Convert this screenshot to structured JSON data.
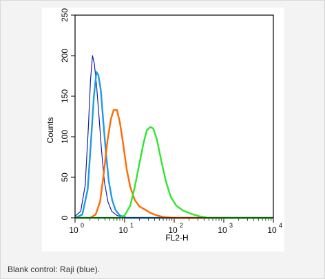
{
  "caption": "Blank control: Raji (blue).",
  "chart_data": {
    "type": "line",
    "title": "",
    "xlabel": "FL2-H",
    "ylabel": "Counts",
    "x_scale": "log",
    "xlim": [
      1,
      10000
    ],
    "ylim": [
      0,
      250
    ],
    "x_ticks": [
      {
        "base": "10",
        "exp": "0"
      },
      {
        "base": "10",
        "exp": "1"
      },
      {
        "base": "10",
        "exp": "2"
      },
      {
        "base": "10",
        "exp": "3"
      },
      {
        "base": "10",
        "exp": "4"
      }
    ],
    "y_ticks": [
      "0",
      "50",
      "100",
      "150",
      "200",
      "250"
    ],
    "grid": false,
    "series": [
      {
        "color": "#1a1aa6",
        "points": [
          [
            1.0,
            2
          ],
          [
            1.3,
            8
          ],
          [
            1.6,
            40
          ],
          [
            1.85,
            110
          ],
          [
            2.05,
            170
          ],
          [
            2.25,
            200
          ],
          [
            2.45,
            190
          ],
          [
            2.7,
            165
          ],
          [
            3.0,
            130
          ],
          [
            3.4,
            85
          ],
          [
            3.9,
            45
          ],
          [
            4.6,
            20
          ],
          [
            5.5,
            8
          ],
          [
            7.0,
            3
          ],
          [
            10.0,
            0
          ],
          [
            100.0,
            0
          ],
          [
            10000.0,
            0
          ]
        ]
      },
      {
        "color": "#1e9be6",
        "points": [
          [
            1.0,
            0
          ],
          [
            1.4,
            4
          ],
          [
            1.8,
            35
          ],
          [
            2.1,
            95
          ],
          [
            2.4,
            150
          ],
          [
            2.7,
            180
          ],
          [
            2.95,
            176
          ],
          [
            3.3,
            158
          ],
          [
            3.7,
            120
          ],
          [
            4.2,
            80
          ],
          [
            4.8,
            45
          ],
          [
            5.6,
            22
          ],
          [
            6.5,
            10
          ],
          [
            8.0,
            3
          ],
          [
            11.0,
            0
          ],
          [
            100.0,
            0
          ],
          [
            10000.0,
            0
          ]
        ]
      },
      {
        "color": "#ff6a00",
        "points": [
          [
            1.0,
            0
          ],
          [
            2.0,
            0
          ],
          [
            2.6,
            4
          ],
          [
            3.2,
            20
          ],
          [
            3.8,
            55
          ],
          [
            4.5,
            95
          ],
          [
            5.3,
            122
          ],
          [
            6.0,
            133
          ],
          [
            7.0,
            133
          ],
          [
            8.0,
            118
          ],
          [
            9.3,
            92
          ],
          [
            11.0,
            60
          ],
          [
            13.0,
            38
          ],
          [
            16.0,
            22
          ],
          [
            20.0,
            14
          ],
          [
            26.0,
            10
          ],
          [
            33.0,
            6
          ],
          [
            45.0,
            3
          ],
          [
            60.0,
            1
          ],
          [
            100.0,
            0
          ],
          [
            10000.0,
            0
          ]
        ]
      },
      {
        "color": "#2ee62e",
        "points": [
          [
            1.0,
            0
          ],
          [
            8.0,
            0
          ],
          [
            10.0,
            3
          ],
          [
            13.0,
            15
          ],
          [
            16.0,
            38
          ],
          [
            20.0,
            68
          ],
          [
            24.0,
            92
          ],
          [
            28.0,
            108
          ],
          [
            33.0,
            112
          ],
          [
            38.0,
            110
          ],
          [
            45.0,
            96
          ],
          [
            55.0,
            70
          ],
          [
            68.0,
            45
          ],
          [
            85.0,
            26
          ],
          [
            110.0,
            15
          ],
          [
            150.0,
            9
          ],
          [
            220.0,
            5
          ],
          [
            320.0,
            2
          ],
          [
            500.0,
            0
          ],
          [
            10000.0,
            0
          ]
        ]
      }
    ]
  }
}
